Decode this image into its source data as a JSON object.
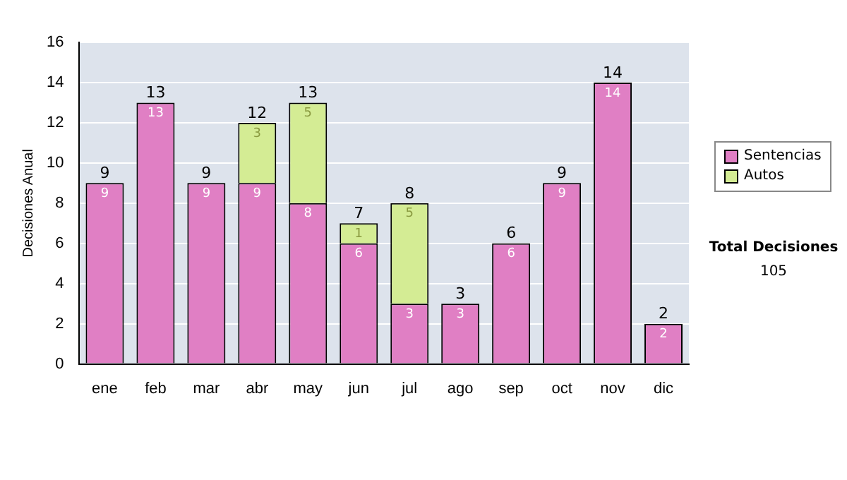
{
  "chart_data": {
    "type": "bar",
    "stacked": true,
    "ylabel": "Decisiones Anual",
    "categories": [
      "ene",
      "feb",
      "mar",
      "abr",
      "may",
      "jun",
      "jul",
      "ago",
      "sep",
      "oct",
      "nov",
      "dic"
    ],
    "series": [
      {
        "name": "Sentencias",
        "color": "#e07fc4",
        "values": [
          9,
          13,
          9,
          9,
          8,
          6,
          3,
          3,
          6,
          9,
          14,
          2
        ]
      },
      {
        "name": "Autos",
        "color": "#d4ec94",
        "values": [
          null,
          null,
          null,
          3,
          5,
          1,
          5,
          null,
          null,
          null,
          null,
          null
        ]
      }
    ],
    "ylim": [
      0,
      16
    ],
    "yticks": [
      0,
      2,
      4,
      6,
      8,
      10,
      12,
      14,
      16
    ],
    "grid": "y",
    "legend": "right",
    "data_labels": true,
    "totals": [
      "9",
      "13",
      "9",
      "12",
      "13",
      "7",
      "8",
      "3",
      "6",
      "9",
      "14",
      "2"
    ],
    "annotations": [
      "Total Decisiones",
      "105"
    ]
  }
}
